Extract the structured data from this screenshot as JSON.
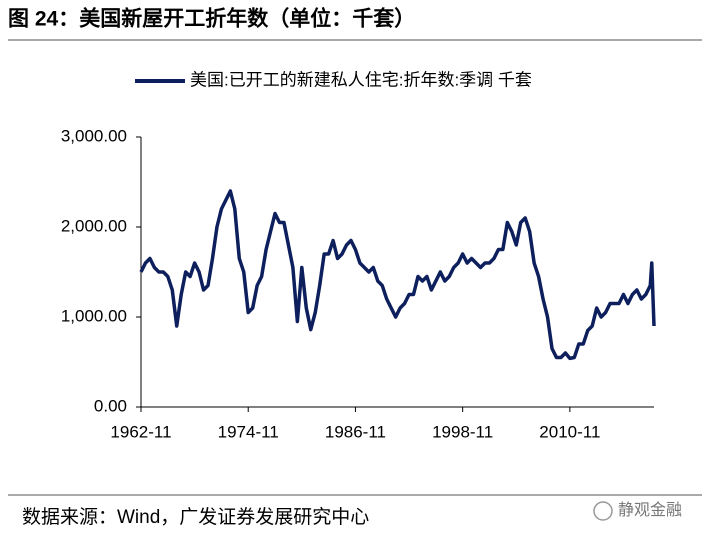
{
  "title": "图 24：美国新屋开工折年数（单位：千套）",
  "source": "数据来源：Wind，广发证券发展研究中心",
  "watermark": "静观金融",
  "chart_data": {
    "type": "line",
    "x": [
      "1962-11",
      "1963-05",
      "1963-11",
      "1964-05",
      "1964-11",
      "1965-05",
      "1965-11",
      "1966-05",
      "1966-11",
      "1967-05",
      "1967-11",
      "1968-05",
      "1968-11",
      "1969-05",
      "1969-11",
      "1970-05",
      "1970-11",
      "1971-05",
      "1971-11",
      "1972-05",
      "1972-11",
      "1973-05",
      "1973-11",
      "1974-05",
      "1974-11",
      "1975-05",
      "1975-11",
      "1976-05",
      "1976-11",
      "1977-05",
      "1977-11",
      "1978-05",
      "1978-11",
      "1979-05",
      "1979-11",
      "1980-05",
      "1980-11",
      "1981-05",
      "1981-11",
      "1982-05",
      "1982-11",
      "1983-05",
      "1983-11",
      "1984-05",
      "1984-11",
      "1985-05",
      "1985-11",
      "1986-05",
      "1986-11",
      "1987-05",
      "1987-11",
      "1988-05",
      "1988-11",
      "1989-05",
      "1989-11",
      "1990-05",
      "1990-11",
      "1991-05",
      "1991-11",
      "1992-05",
      "1992-11",
      "1993-05",
      "1993-11",
      "1994-05",
      "1994-11",
      "1995-05",
      "1995-11",
      "1996-05",
      "1996-11",
      "1997-05",
      "1997-11",
      "1998-05",
      "1998-11",
      "1999-05",
      "1999-11",
      "2000-05",
      "2000-11",
      "2001-05",
      "2001-11",
      "2002-05",
      "2002-11",
      "2003-05",
      "2003-11",
      "2004-05",
      "2004-11",
      "2005-05",
      "2005-11",
      "2006-05",
      "2006-11",
      "2007-05",
      "2007-11",
      "2008-05",
      "2008-11",
      "2009-05",
      "2009-11",
      "2010-05",
      "2010-11",
      "2011-05",
      "2011-11",
      "2012-05",
      "2012-11",
      "2013-05",
      "2013-11",
      "2014-05",
      "2014-11",
      "2015-05",
      "2015-11",
      "2016-05",
      "2016-11",
      "2017-05",
      "2017-11",
      "2018-05",
      "2018-11",
      "2019-05",
      "2019-11",
      "2020-01",
      "2020-04"
    ],
    "series": [
      {
        "name": "美国:已开工的新建私人住宅:折年数:季调 千套",
        "color": "#0d1f5c",
        "values": [
          1500,
          1600,
          1650,
          1550,
          1500,
          1500,
          1450,
          1300,
          900,
          1250,
          1500,
          1450,
          1600,
          1500,
          1300,
          1350,
          1650,
          2000,
          2200,
          2300,
          2400,
          2200,
          1650,
          1500,
          1050,
          1100,
          1350,
          1450,
          1750,
          1950,
          2150,
          2050,
          2050,
          1800,
          1550,
          950,
          1550,
          1100,
          860,
          1050,
          1350,
          1700,
          1700,
          1850,
          1650,
          1700,
          1800,
          1850,
          1750,
          1600,
          1550,
          1500,
          1550,
          1400,
          1350,
          1200,
          1100,
          1000,
          1100,
          1150,
          1250,
          1250,
          1450,
          1400,
          1450,
          1300,
          1400,
          1500,
          1400,
          1450,
          1550,
          1600,
          1700,
          1600,
          1650,
          1600,
          1550,
          1600,
          1600,
          1650,
          1750,
          1750,
          2050,
          1950,
          1800,
          2050,
          2100,
          1950,
          1600,
          1450,
          1200,
          1000,
          650,
          550,
          550,
          600,
          540,
          550,
          700,
          700,
          850,
          900,
          1100,
          1000,
          1050,
          1150,
          1150,
          1150,
          1250,
          1150,
          1250,
          1300,
          1200,
          1250,
          1350,
          1600,
          900
        ]
      }
    ],
    "xlim": [
      "1962-11",
      "2020-04"
    ],
    "xticks": [
      "1962-11",
      "1974-11",
      "1986-11",
      "1998-11",
      "2010-11"
    ],
    "ylim": [
      0,
      3000
    ],
    "yticks": [
      {
        "value": 0,
        "label": "0.00"
      },
      {
        "value": 1000,
        "label": "1,000.00"
      },
      {
        "value": 2000,
        "label": "2,000.00"
      },
      {
        "value": 3000,
        "label": "3,000.00"
      }
    ],
    "grid": false
  }
}
